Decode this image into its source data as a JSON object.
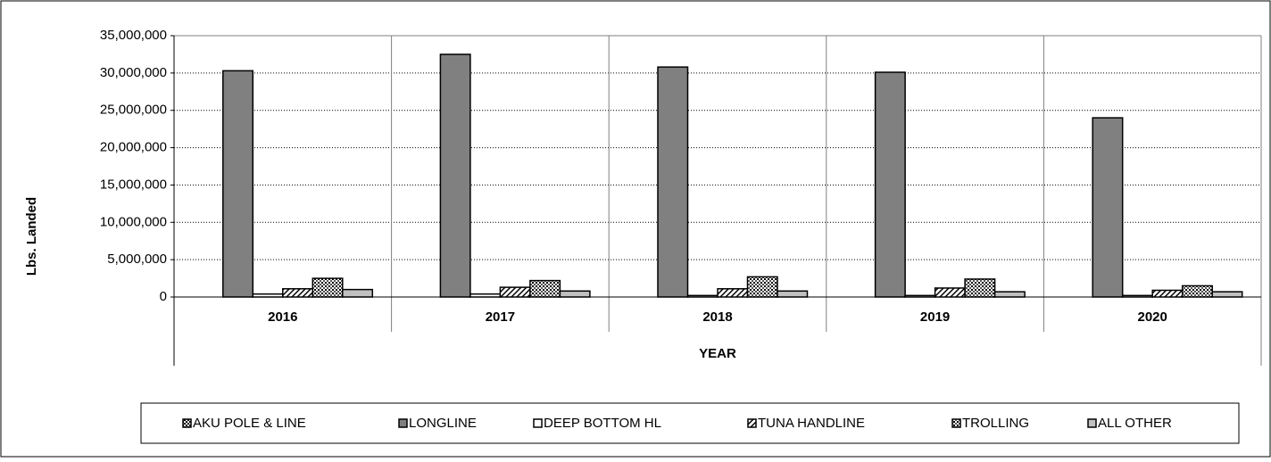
{
  "chart_data": {
    "type": "bar",
    "y_label": "Lbs. Landed",
    "x_label": "YEAR",
    "categories": [
      "2016",
      "2017",
      "2018",
      "2019",
      "2020"
    ],
    "series": [
      {
        "name": "AKU POLE & LINE",
        "color": "#ffffff",
        "pattern": "checker",
        "values": [
          0,
          0,
          0,
          0,
          0
        ]
      },
      {
        "name": "LONGLINE",
        "color": "#808080",
        "pattern": "solid",
        "values": [
          30300000,
          32500000,
          30800000,
          30100000,
          24000000
        ]
      },
      {
        "name": "DEEP BOTTOM HL",
        "color": "#ffffff",
        "pattern": "solid",
        "values": [
          400000,
          400000,
          200000,
          200000,
          200000
        ]
      },
      {
        "name": "TUNA HANDLINE",
        "color": "#ffffff",
        "pattern": "diagonal",
        "values": [
          1100000,
          1300000,
          1100000,
          1200000,
          900000
        ]
      },
      {
        "name": "TROLLING",
        "color": "#ffffff",
        "pattern": "dots",
        "values": [
          2500000,
          2200000,
          2700000,
          2400000,
          1500000
        ]
      },
      {
        "name": "ALL OTHER",
        "color": "#c0c0c0",
        "pattern": "solid",
        "values": [
          1000000,
          800000,
          800000,
          700000,
          700000
        ]
      }
    ],
    "ylim": [
      0,
      35000000
    ],
    "yticks": [
      0,
      {
        "value": 5000000,
        "label": "5,000,000"
      },
      {
        "value": 10000000,
        "label": "10,000,000"
      },
      {
        "value": 15000000,
        "label": "15,000,000"
      },
      {
        "value": 20000000,
        "label": "20,000,000"
      },
      {
        "value": 25000000,
        "label": "25,000,000"
      },
      {
        "value": 30000000,
        "label": "30,000,000"
      },
      {
        "value": 35000000,
        "label": "35,000,000"
      }
    ],
    "grid": true,
    "legend": "bottom"
  }
}
